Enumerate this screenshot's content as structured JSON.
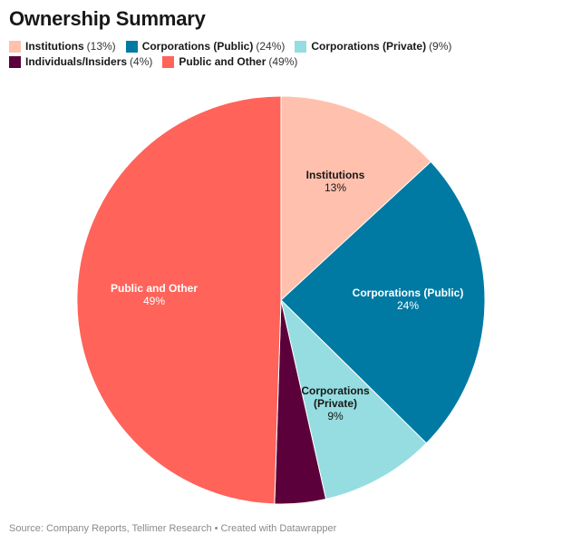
{
  "title": "Ownership Summary",
  "source": "Source: Company Reports, Tellimer Research • Created with Datawrapper",
  "chart_data": {
    "type": "pie",
    "title": "Ownership Summary",
    "start_angle_deg": 0,
    "direction": "clockwise",
    "slices": [
      {
        "name": "Institutions",
        "value": 13,
        "pct_label": "13%",
        "legend_pct": "(13%)",
        "label_lines": [
          "Institutions"
        ],
        "color": "#ffc1ad",
        "label_color": "#181818"
      },
      {
        "name": "Corporations (Public)",
        "value": 24,
        "pct_label": "24%",
        "legend_pct": "(24%)",
        "label_lines": [
          "Corporations (Public)"
        ],
        "color": "#007aa3",
        "label_color": "#ffffff"
      },
      {
        "name": "Corporations (Private)",
        "value": 9,
        "pct_label": "9%",
        "legend_pct": "(9%)",
        "label_lines": [
          "Corporations",
          "(Private)"
        ],
        "color": "#95dde0",
        "label_color": "#181818"
      },
      {
        "name": "Individuals/Insiders",
        "value": 4,
        "pct_label": "4%",
        "legend_pct": "(4%)",
        "label_lines": [],
        "color": "#5b003b",
        "label_color": "#ffffff"
      },
      {
        "name": "Public and Other",
        "value": 49,
        "pct_label": "49%",
        "legend_pct": "(49%)",
        "label_lines": [
          "Public and Other"
        ],
        "color": "#ff635a",
        "label_color": "#ffffff"
      }
    ]
  }
}
